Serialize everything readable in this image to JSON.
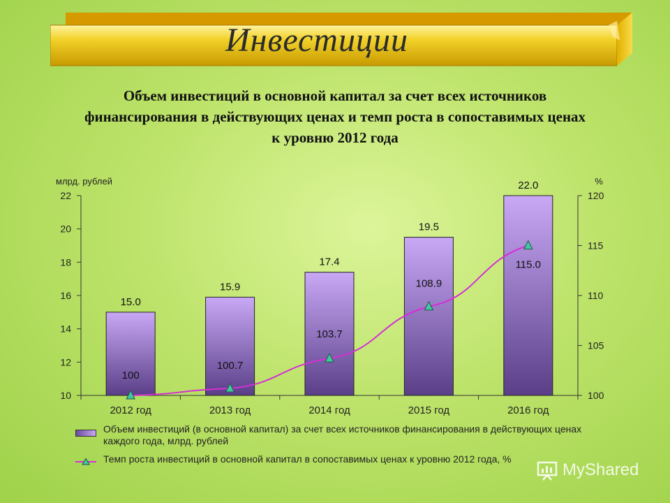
{
  "header": {
    "title": "Инвестиции"
  },
  "subtitle_lines": [
    "Объем инвестиций в основной капитал за счет всех источников",
    "финансирования в действующих ценах и темп роста в сопоставимых ценах",
    "к уровню 2012 года"
  ],
  "legend": {
    "bar": "Объем инвестиций (в основной капитал) за счет всех источников финансирования в действующих ценах каждого года, млрд. рублей",
    "line": "Темп роста инвестиций в основной капитал в сопоставимых ценах к уровню 2012 года, %"
  },
  "watermark": {
    "text": "MyShared"
  },
  "colors": {
    "bar_top": "#c9a8f5",
    "bar_bottom": "#5a3f88",
    "line": "#d42fd4",
    "marker": "#44c7a0"
  },
  "chart_data": {
    "type": "bar",
    "categories": [
      "2012 год",
      "2013 год",
      "2014 год",
      "2015 год",
      "2016 год"
    ],
    "series": [
      {
        "name": "Объем инвестиций (в основной капитал) за счет всех источников финансирования в действующих ценах каждого года, млрд. рублей",
        "type": "bar",
        "axis": "left",
        "values": [
          15.0,
          15.9,
          17.4,
          19.5,
          22.0
        ],
        "labels": [
          "15.0",
          "15.9",
          "17.4",
          "19.5",
          "22.0"
        ]
      },
      {
        "name": "Темп роста инвестиций в основной капитал в сопоставимых ценах к уровню 2012 года, %",
        "type": "line",
        "axis": "right",
        "values": [
          100,
          100.7,
          103.7,
          108.9,
          115.0
        ],
        "labels": [
          "100",
          "100.7",
          "103.7",
          "108.9",
          "115.0"
        ]
      }
    ],
    "ylabel": "млрд. рублей",
    "ylim": [
      10,
      22
    ],
    "yticks": [
      "10",
      "12",
      "14",
      "16",
      "18",
      "20",
      "22"
    ],
    "y2label": "%",
    "y2lim": [
      100,
      120
    ],
    "y2ticks": [
      "100",
      "105",
      "110",
      "115",
      "120"
    ],
    "grid": false,
    "legend_position": "bottom"
  }
}
